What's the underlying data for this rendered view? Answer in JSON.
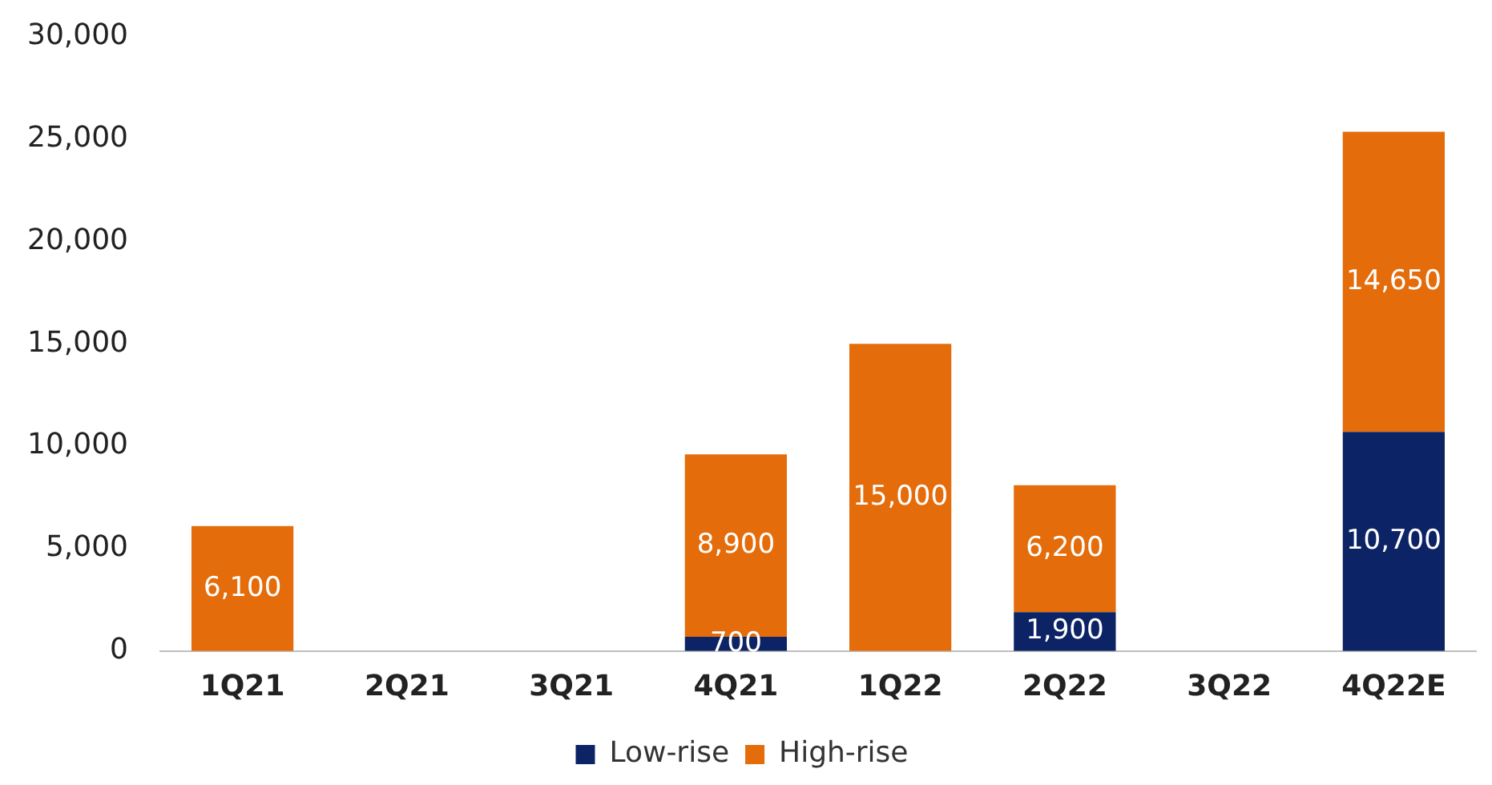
{
  "chart_data": {
    "type": "bar",
    "stacked": true,
    "categories": [
      "1Q21",
      "2Q21",
      "3Q21",
      "4Q21",
      "1Q22",
      "2Q22",
      "3Q22",
      "4Q22E"
    ],
    "series": [
      {
        "name": "Low-rise",
        "color": "#0c2366",
        "values": [
          null,
          null,
          null,
          700,
          null,
          1900,
          null,
          10700
        ],
        "value_labels": [
          null,
          null,
          null,
          "700",
          null,
          "1,900",
          null,
          "10,700"
        ]
      },
      {
        "name": "High-rise",
        "color": "#e46c0a",
        "values": [
          6100,
          null,
          null,
          8900,
          15000,
          6200,
          null,
          14650
        ],
        "value_labels": [
          "6,100",
          null,
          null,
          "8,900",
          "15,000",
          "6,200",
          null,
          "14,650"
        ]
      }
    ],
    "ylim": [
      0,
      30000
    ],
    "yticks": [
      0,
      {
        "value": 5000,
        "label": "5,000"
      },
      {
        "value": 10000,
        "label": "10,000"
      },
      {
        "value": 15000,
        "label": "15,000"
      },
      {
        "value": 20000,
        "label": "20,000"
      },
      {
        "value": 25000,
        "label": "25,000"
      },
      {
        "value": 30000,
        "label": "30,000"
      }
    ],
    "grid": false,
    "legend": "bottom"
  }
}
